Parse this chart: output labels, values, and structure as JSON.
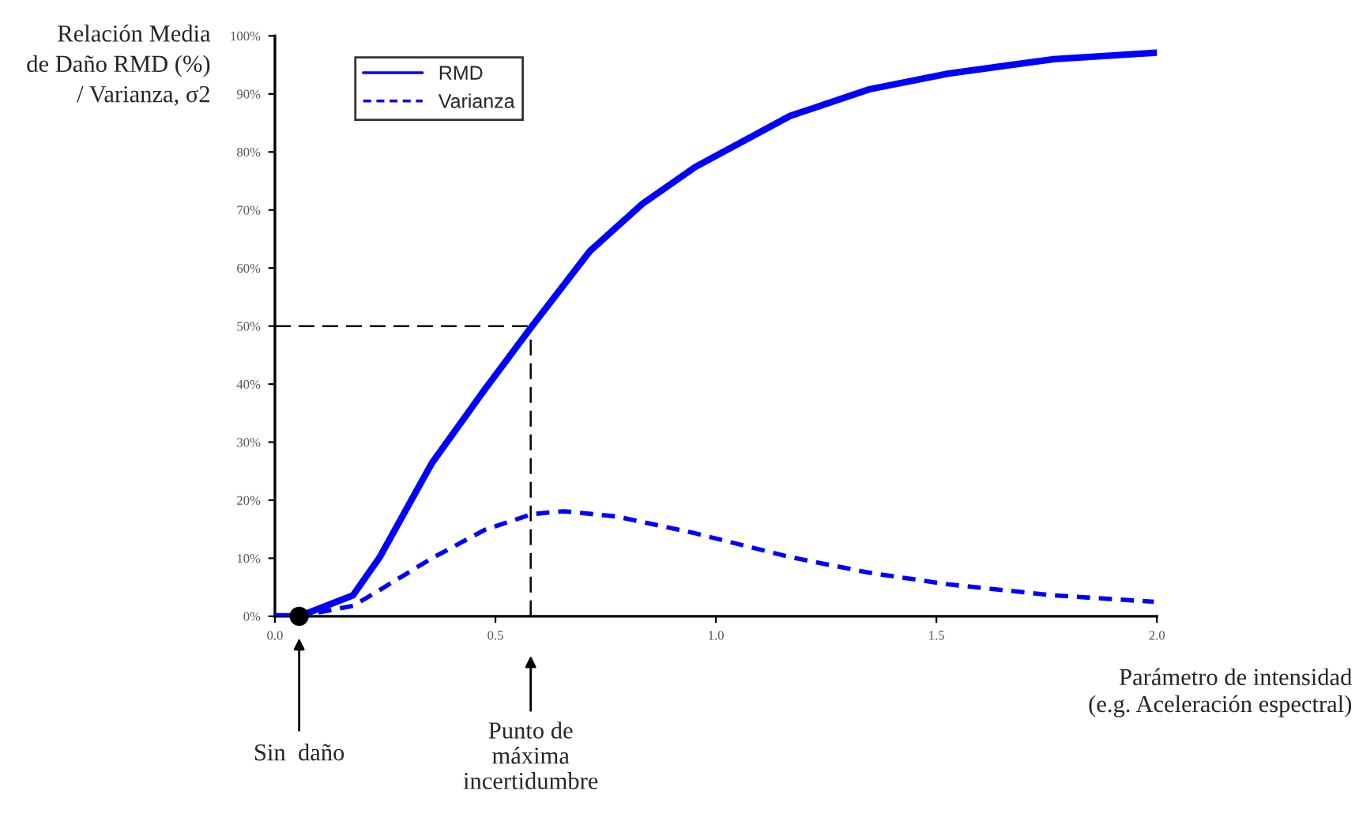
{
  "chart_data": {
    "type": "line",
    "xlabel": "Parámetro de intensidad\n(e.g. Aceleración espectral)",
    "ylabel": "Relación Media\nde Daño RMD (%)\n/ Varianza, σ2",
    "xlim": [
      0,
      2
    ],
    "xticks": [
      {
        "value": 0,
        "label": "0.0"
      },
      {
        "value": 0.5,
        "label": "0.5"
      },
      {
        "value": 1,
        "label": "1.0"
      },
      {
        "value": 1.5,
        "label": "1.5"
      },
      {
        "value": 2,
        "label": "2.0"
      }
    ],
    "ylim": [
      0,
      100
    ],
    "yticks": [
      {
        "value": 0,
        "label": "0%"
      },
      {
        "value": 10,
        "label": "10%"
      },
      {
        "value": 20,
        "label": "20%"
      },
      {
        "value": 30,
        "label": "30%"
      },
      {
        "value": 40,
        "label": "40%"
      },
      {
        "value": 50,
        "label": "50%"
      },
      {
        "value": 60,
        "label": "60%"
      },
      {
        "value": 70,
        "label": "70%"
      },
      {
        "value": 80,
        "label": "80%"
      },
      {
        "value": 90,
        "label": "90%"
      },
      {
        "value": 100,
        "label": "100%"
      }
    ],
    "grid": false,
    "legend": "top left",
    "series": [
      {
        "name": "RMD",
        "color": "#0000ff",
        "line_style": "solid",
        "x": [
          0,
          0.055,
          0.177,
          0.237,
          0.356,
          0.476,
          0.583,
          0.714,
          0.834,
          0.953,
          1.168,
          1.348,
          1.527,
          1.766,
          2.0
        ],
        "values": [
          0,
          0,
          3.6,
          10.1,
          26.4,
          39.1,
          50,
          62.9,
          71.1,
          77.4,
          86.2,
          90.8,
          93.5,
          96.0,
          97.1
        ]
      },
      {
        "name": "Varianza",
        "color": "#0000ff",
        "line_style": "dashed",
        "x": [
          0,
          0.055,
          0.177,
          0.237,
          0.356,
          0.476,
          0.583,
          0.655,
          0.774,
          0.953,
          1.168,
          1.348,
          1.527,
          1.766,
          1.993
        ],
        "values": [
          0,
          0,
          1.8,
          4.5,
          10.0,
          14.9,
          17.6,
          18.1,
          17.2,
          14.3,
          10.2,
          7.5,
          5.5,
          3.6,
          2.5
        ]
      },
      {
        "type": "scatter",
        "color": "#000000",
        "marker": "circle",
        "x": [
          0.055
        ],
        "values": [
          0
        ]
      }
    ],
    "ref_lines": [
      {
        "axis": "y",
        "value": 50,
        "color": "#000000",
        "line_style": "dashed"
      },
      {
        "axis": "x",
        "value": 0.58,
        "color": "#000000",
        "line_style": "dashed"
      }
    ],
    "annotations": [
      "Sin  daño",
      "Punto de\nmáxima\nincertidumbre"
    ]
  }
}
